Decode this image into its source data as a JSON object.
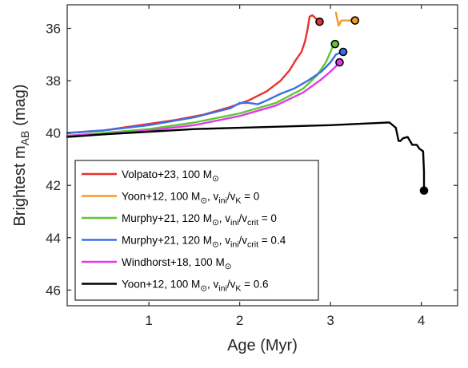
{
  "chart_data": {
    "type": "line",
    "xlabel": "Age (Myr)",
    "ylabel_main": "Brightest m",
    "ylabel_sub": "AB",
    "ylabel_unit": "(mag)",
    "xlim": [
      0.1,
      4.4
    ],
    "ylim": [
      46.6,
      35.1
    ],
    "y_reversed": true,
    "grid": false,
    "legend_position": "bottom-left",
    "xticks": [
      1,
      2,
      3,
      4
    ],
    "xtick_labels": [
      "1",
      "2",
      "3",
      "4"
    ],
    "yticks": [
      36,
      38,
      40,
      42,
      44,
      46
    ],
    "ytick_labels": [
      "36",
      "38",
      "40",
      "42",
      "44",
      "46"
    ],
    "series": [
      {
        "color": "#e8312a",
        "legend": [
          {
            "t": "Volpato+23, 100 M"
          },
          {
            "t": "⊙",
            "sub": true
          }
        ],
        "x": [
          0.1,
          0.5,
          0.8,
          1.0,
          1.3,
          1.6,
          1.9,
          2.1,
          2.3,
          2.45,
          2.55,
          2.62,
          2.68,
          2.72,
          2.75,
          2.77,
          2.8,
          2.88
        ],
        "y": [
          40.0,
          39.9,
          39.75,
          39.65,
          39.5,
          39.3,
          39.0,
          38.75,
          38.4,
          38.0,
          37.6,
          37.2,
          36.9,
          36.5,
          36.0,
          35.55,
          35.5,
          35.75
        ],
        "marker": [
          2.88,
          35.75
        ]
      },
      {
        "color": "#f39a2c",
        "legend": [
          {
            "t": "Yoon+12, 100 M"
          },
          {
            "t": "⊙",
            "sub": true
          },
          {
            "t": ", v"
          },
          {
            "t": "ini",
            "sub": true
          },
          {
            "t": "/v"
          },
          {
            "t": "K",
            "sub": true
          },
          {
            "t": " = 0"
          }
        ],
        "x": [
          3.06,
          3.09,
          3.12,
          3.16,
          3.2,
          3.27
        ],
        "y": [
          35.4,
          35.9,
          35.7,
          35.7,
          35.7,
          35.7
        ],
        "marker": [
          3.27,
          35.7
        ]
      },
      {
        "color": "#5ec730",
        "legend": [
          {
            "t": "Murphy+21, 120 M"
          },
          {
            "t": "⊙",
            "sub": true
          },
          {
            "t": ", v"
          },
          {
            "t": "ini",
            "sub": true
          },
          {
            "t": "/v"
          },
          {
            "t": "crit",
            "sub": true
          },
          {
            "t": " = 0"
          }
        ],
        "x": [
          0.1,
          0.5,
          1.0,
          1.5,
          2.0,
          2.4,
          2.7,
          2.85,
          2.95,
          3.0,
          3.03,
          3.05
        ],
        "y": [
          40.1,
          40.0,
          39.85,
          39.6,
          39.25,
          38.85,
          38.3,
          37.8,
          37.3,
          36.9,
          36.65,
          36.6
        ],
        "marker": [
          3.05,
          36.6
        ]
      },
      {
        "color": "#3c6ee8",
        "legend": [
          {
            "t": "Murphy+21, 120 M"
          },
          {
            "t": "⊙",
            "sub": true
          },
          {
            "t": ", v"
          },
          {
            "t": "ini",
            "sub": true
          },
          {
            "t": "/v"
          },
          {
            "t": "crit",
            "sub": true
          },
          {
            "t": " = 0.4"
          }
        ],
        "x": [
          0.1,
          0.5,
          1.0,
          1.5,
          1.9,
          2.0,
          2.1,
          2.2,
          2.3,
          2.45,
          2.6,
          2.75,
          2.9,
          3.0,
          3.06,
          3.1,
          3.14
        ],
        "y": [
          40.0,
          39.9,
          39.7,
          39.4,
          39.05,
          38.85,
          38.85,
          38.9,
          38.75,
          38.5,
          38.3,
          38.0,
          37.65,
          37.3,
          37.0,
          36.95,
          36.9
        ],
        "marker": [
          3.14,
          36.9
        ]
      },
      {
        "color": "#e13ae8",
        "legend": [
          {
            "t": "Windhorst+18, 100 M"
          },
          {
            "t": "⊙",
            "sub": true
          }
        ],
        "x": [
          0.1,
          0.5,
          1.0,
          1.5,
          2.0,
          2.4,
          2.7,
          2.9,
          3.0,
          3.06,
          3.1
        ],
        "y": [
          40.1,
          40.05,
          39.9,
          39.7,
          39.35,
          38.95,
          38.45,
          37.95,
          37.65,
          37.45,
          37.3
        ],
        "marker": [
          3.1,
          37.3
        ]
      },
      {
        "color": "#000000",
        "legend": [
          {
            "t": "Yoon+12, 100 M"
          },
          {
            "t": "⊙",
            "sub": true
          },
          {
            "t": ", v"
          },
          {
            "t": "ini",
            "sub": true
          },
          {
            "t": "/v"
          },
          {
            "t": "K",
            "sub": true
          },
          {
            "t": " = 0.6"
          }
        ],
        "x": [
          0.1,
          0.5,
          1.0,
          1.5,
          2.0,
          2.5,
          3.0,
          3.3,
          3.5,
          3.62,
          3.65,
          3.72,
          3.75,
          3.77,
          3.8,
          3.85,
          3.9,
          3.93,
          3.95,
          3.98,
          4.0,
          4.02,
          4.03,
          4.03
        ],
        "y": [
          40.15,
          40.05,
          39.95,
          39.85,
          39.8,
          39.75,
          39.7,
          39.65,
          39.62,
          39.6,
          39.6,
          39.8,
          40.3,
          40.3,
          40.2,
          40.15,
          40.45,
          40.45,
          40.45,
          40.6,
          40.65,
          40.7,
          41.5,
          42.2
        ],
        "marker": [
          4.03,
          42.2
        ]
      }
    ]
  }
}
